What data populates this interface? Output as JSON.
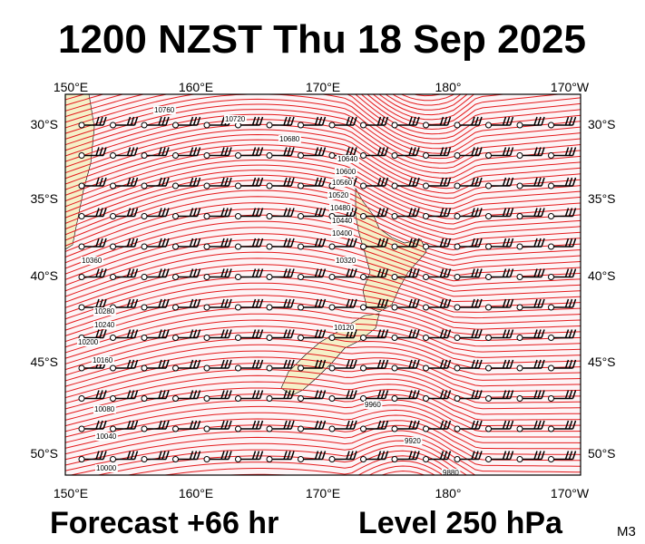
{
  "header": {
    "title": "1200 NZST Thu 18 Sep 2025"
  },
  "axes": {
    "lon_labels": [
      "150°E",
      "160°E",
      "170°E",
      "180°",
      "170°W"
    ],
    "lat_labels": [
      "30°S",
      "35°S",
      "40°S",
      "45°S",
      "50°S"
    ]
  },
  "contour_labels": [
    "10760",
    "10720",
    "10680",
    "10640",
    "10600",
    "10560",
    "10520",
    "10480",
    "10440",
    "10400",
    "10360",
    "10320",
    "10280",
    "10240",
    "10200",
    "10160",
    "10120",
    "10080",
    "10040",
    "10000",
    "9960",
    "9920",
    "9880"
  ],
  "footer": {
    "forecast": "Forecast +66 hr",
    "level": "Level 250 hPa",
    "model": "M3"
  }
}
